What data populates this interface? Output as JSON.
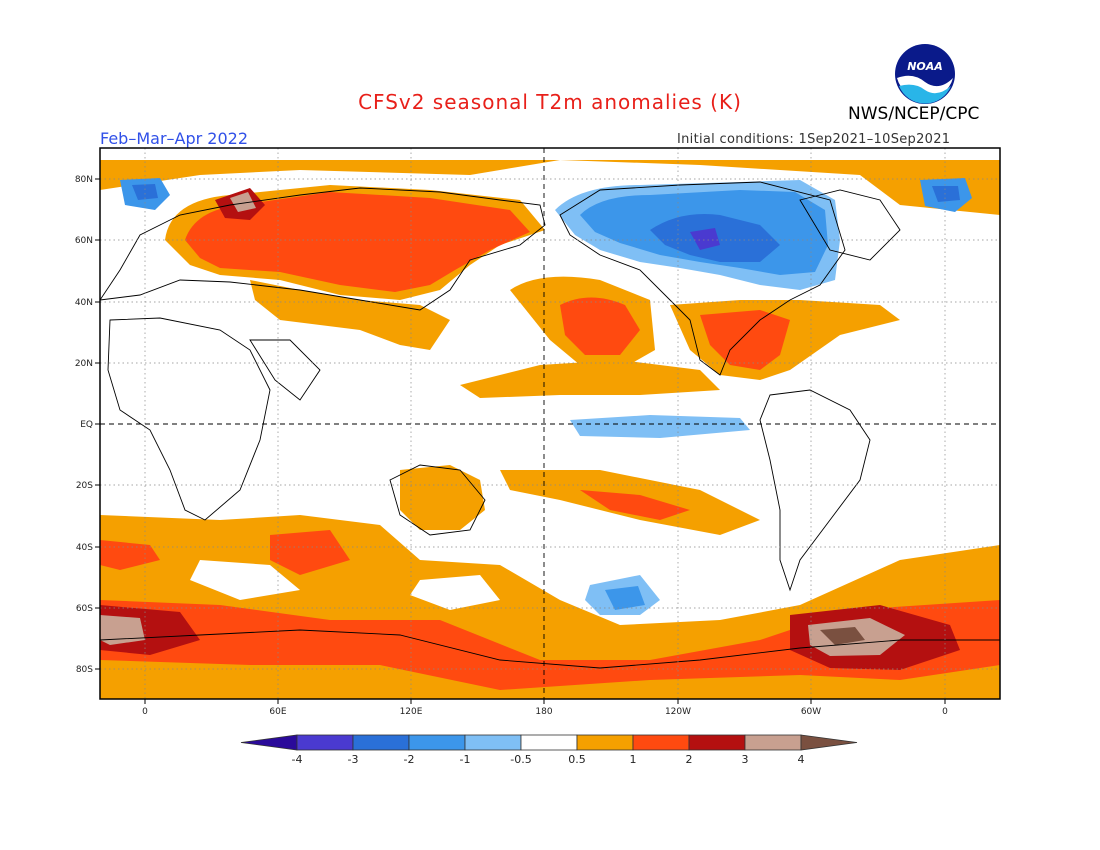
{
  "header": {
    "title": "CFSv2 seasonal T2m anomalies (K)",
    "organization": "NWS/NCEP/CPC",
    "season": "Feb–Mar–Apr 2022",
    "initial_conditions": "Initial conditions: 1Sep2021–10Sep2021",
    "logo_text": "NOAA"
  },
  "axes": {
    "lat_labels": [
      "80N",
      "60N",
      "40N",
      "20N",
      "EQ",
      "20S",
      "40S",
      "60S",
      "80S"
    ],
    "lon_labels": [
      "0",
      "60E",
      "120E",
      "180",
      "120W",
      "60W",
      "0"
    ]
  },
  "colorbar": {
    "labels": [
      "-4",
      "-3",
      "-2",
      "-1",
      "-0.5",
      "0.5",
      "1",
      "2",
      "3",
      "4"
    ],
    "colors": [
      "#2a0a9a",
      "#4a3ad0",
      "#2a70d8",
      "#3c96ea",
      "#7fbff5",
      "#ffffff",
      "#f5a000",
      "#ff4a10",
      "#b41010",
      "#c8a090",
      "#7a5040"
    ]
  }
}
